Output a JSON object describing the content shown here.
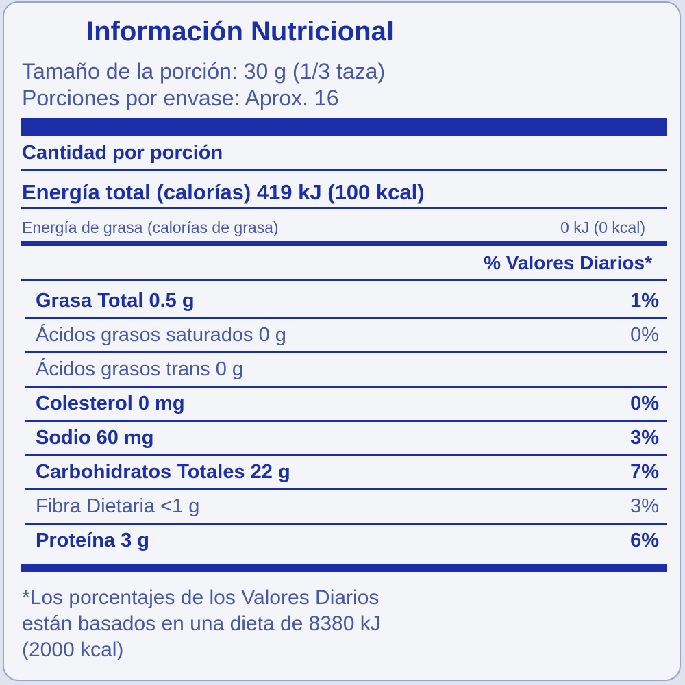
{
  "title": "Información Nutricional",
  "serving_size": "Tamaño de la porción: 30 g (1/3 taza)",
  "servings_per_container": "Porciones por envase: Aprox. 16",
  "amount_per_serving": "Cantidad por porción",
  "total_energy": "Energía total (calorías) 419 kJ (100 kcal)",
  "fat_energy_label": "Energía de grasa (calorías de grasa)",
  "fat_energy_value": "0 kJ (0 kcal)",
  "daily_values_header": "% Valores Diarios*",
  "nutrients": [
    {
      "name": "Grasa Total 0.5 g",
      "dv": "1%",
      "bold": true
    },
    {
      "name": "Ácidos grasos saturados 0 g",
      "dv": "0%",
      "bold": false
    },
    {
      "name": "Ácidos grasos trans 0 g",
      "dv": "",
      "bold": false
    },
    {
      "name": "Colesterol 0 mg",
      "dv": "0%",
      "bold": true
    },
    {
      "name": "Sodio 60 mg",
      "dv": "3%",
      "bold": true
    },
    {
      "name": "Carbohidratos Totales 22 g",
      "dv": "7%",
      "bold": true
    },
    {
      "name": "Fibra Dietaria <1 g",
      "dv": "3%",
      "bold": false
    },
    {
      "name": "Proteína 3 g",
      "dv": "6%",
      "bold": true
    }
  ],
  "footnote": [
    "*Los porcentajes de los Valores Diarios",
    "están basados en una dieta de 8380 kJ",
    "(2000 kcal)"
  ],
  "colors": {
    "ink": "#1d2fa6",
    "ink_light": "#4a57a6",
    "background": "#f4f5f8"
  }
}
